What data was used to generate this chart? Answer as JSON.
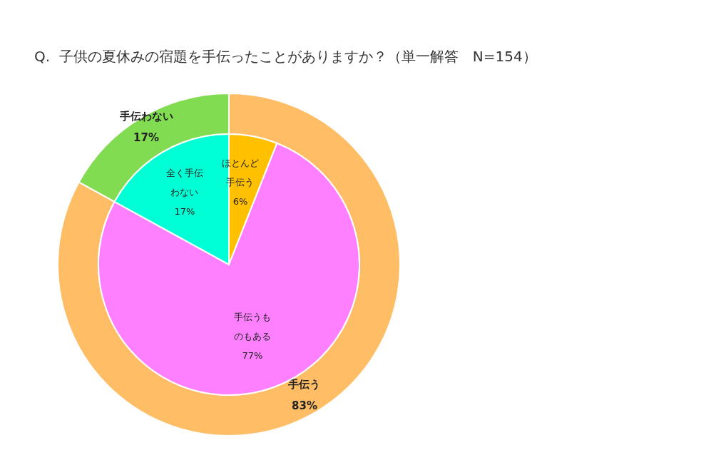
{
  "chart_data": [
    {
      "type": "donut",
      "title": "Q.  子供の夏休みの宿題を手伝ったことがありますか？（単一解答　N=154）",
      "categories": [
        "手伝う",
        "手伝わない"
      ],
      "values": [
        83,
        17
      ],
      "value_labels": [
        "83%",
        "17%"
      ],
      "colors": [
        "#ffbe66",
        "#82dc52"
      ]
    },
    {
      "type": "pie",
      "categories": [
        "ほとんど手伝う",
        "手伝うものもある",
        "全く手伝わない"
      ],
      "values": [
        6,
        77,
        17
      ],
      "value_labels": [
        "6%",
        "77%",
        "17%"
      ],
      "colors": [
        "#ffc000",
        "#ff80ff",
        "#00ffd5"
      ]
    }
  ]
}
